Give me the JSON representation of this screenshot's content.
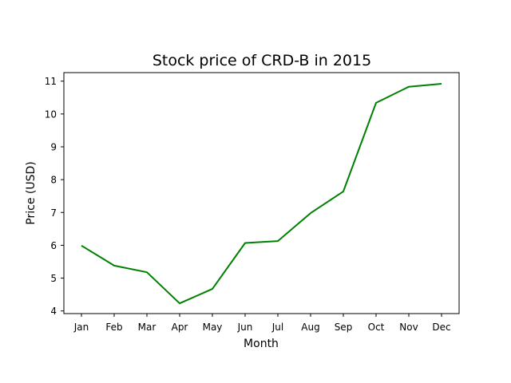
{
  "chart_data": {
    "type": "line",
    "title": "Stock price of CRD-B in 2015",
    "xlabel": "Month",
    "ylabel": "Price (USD)",
    "categories": [
      "Jan",
      "Feb",
      "Mar",
      "Apr",
      "May",
      "Jun",
      "Jul",
      "Aug",
      "Sep",
      "Oct",
      "Nov",
      "Dec"
    ],
    "series": [
      {
        "values": [
          5.99,
          5.38,
          5.18,
          4.23,
          4.67,
          6.07,
          6.13,
          6.98,
          7.64,
          10.34,
          10.83,
          10.92
        ],
        "color": "#008000"
      }
    ],
    "ylim": [
      3.92,
      11.26
    ],
    "yticks": [
      4,
      5,
      6,
      7,
      8,
      9,
      10,
      11
    ],
    "grid": false,
    "legend": "none"
  }
}
